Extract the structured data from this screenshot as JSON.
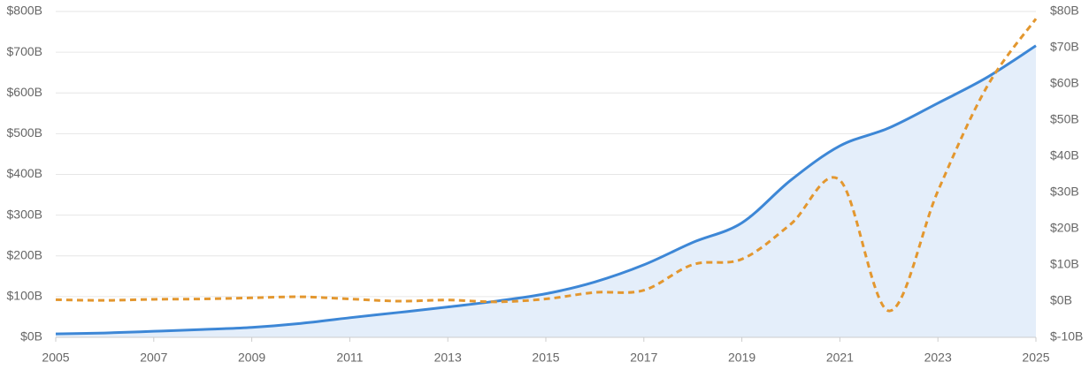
{
  "chart_data": {
    "type": "line",
    "x": [
      2005,
      2006,
      2007,
      2008,
      2009,
      2010,
      2011,
      2012,
      2013,
      2014,
      2015,
      2016,
      2017,
      2018,
      2019,
      2020,
      2021,
      2022,
      2023,
      2024,
      2025
    ],
    "series": [
      {
        "color": "#3d87d6",
        "area": true,
        "area_color": "#e4eefa",
        "line_style": "solid",
        "values": [
          8.5,
          10.7,
          14.8,
          19.2,
          24.5,
          34.2,
          48.1,
          61.1,
          74.5,
          89,
          107,
          136,
          178,
          233,
          281,
          386,
          470,
          514,
          575,
          638,
          716
        ]
      },
      {
        "color": "#e3972f",
        "axis": "y2",
        "line_style": "dashed",
        "values": [
          0.4,
          0.2,
          0.5,
          0.6,
          0.9,
          1.2,
          0.6,
          0,
          0.3,
          -0.2,
          0.6,
          2.4,
          3,
          10.1,
          11.6,
          21.3,
          33.4,
          -2.7,
          30.4,
          59.2,
          78
        ]
      }
    ],
    "xlim": [
      2005,
      2025
    ],
    "xticks": [
      2005,
      2007,
      2009,
      2011,
      2013,
      2015,
      2017,
      2019,
      2021,
      2023,
      2025
    ],
    "ylim": [
      0,
      800
    ],
    "yticks": [
      {
        "value": 0,
        "label": "$0B"
      },
      {
        "value": 100,
        "label": "$100B"
      },
      {
        "value": 200,
        "label": "$200B"
      },
      {
        "value": 300,
        "label": "$300B"
      },
      {
        "value": 400,
        "label": "$400B"
      },
      {
        "value": 500,
        "label": "$500B"
      },
      {
        "value": 600,
        "label": "$600B"
      },
      {
        "value": 700,
        "label": "$700B"
      },
      {
        "value": 800,
        "label": "$800B"
      }
    ],
    "y2lim": [
      -10,
      80
    ],
    "y2ticks": [
      {
        "value": -10,
        "label": "$-10B"
      },
      {
        "value": 0,
        "label": "$0B"
      },
      {
        "value": 10,
        "label": "$10B"
      },
      {
        "value": 20,
        "label": "$20B"
      },
      {
        "value": 30,
        "label": "$30B"
      },
      {
        "value": 40,
        "label": "$40B"
      },
      {
        "value": 50,
        "label": "$50B"
      },
      {
        "value": 60,
        "label": "$60B"
      },
      {
        "value": 70,
        "label": "$70B"
      },
      {
        "value": 80,
        "label": "$80B"
      }
    ],
    "grid": true,
    "smooth": true
  }
}
